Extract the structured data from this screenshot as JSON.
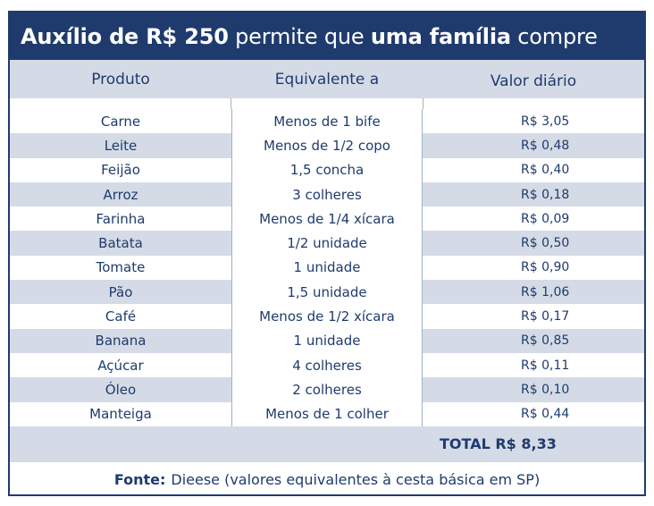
{
  "title": {
    "part1": "Auxílio de R$ 250",
    "part2": " permite que ",
    "part3": "uma família",
    "part4": " compre"
  },
  "headers": {
    "produto": "Produto",
    "equivalente": "Equivalente a",
    "valor": "Valor diário"
  },
  "rows": [
    {
      "produto": "Carne",
      "equivalente": "Menos de 1 bife",
      "valor": "R$ 3,05"
    },
    {
      "produto": "Leite",
      "equivalente": "Menos de 1/2 copo",
      "valor": "R$ 0,48"
    },
    {
      "produto": "Feijão",
      "equivalente": "1,5 concha",
      "valor": "R$ 0,40"
    },
    {
      "produto": "Arroz",
      "equivalente": "3 colheres",
      "valor": "R$ 0,18"
    },
    {
      "produto": "Farinha",
      "equivalente": "Menos de 1/4 xícara",
      "valor": "R$ 0,09"
    },
    {
      "produto": "Batata",
      "equivalente": "1/2 unidade",
      "valor": "R$ 0,50"
    },
    {
      "produto": "Tomate",
      "equivalente": "1 unidade",
      "valor": "R$ 0,90"
    },
    {
      "produto": "Pão",
      "equivalente": "1,5 unidade",
      "valor": "R$ 1,06"
    },
    {
      "produto": "Café",
      "equivalente": "Menos de 1/2 xícara",
      "valor": "R$ 0,17"
    },
    {
      "produto": "Banana",
      "equivalente": "1 unidade",
      "valor": "R$ 0,85"
    },
    {
      "produto": "Açúcar",
      "equivalente": "4 colheres",
      "valor": "R$ 0,11"
    },
    {
      "produto": "Óleo",
      "equivalente": "2 colheres",
      "valor": "R$ 0,10"
    },
    {
      "produto": "Manteiga",
      "equivalente": "Menos de 1 colher",
      "valor": "R$ 0,44"
    }
  ],
  "total": "TOTAL R$ 8,33",
  "source": {
    "label": "Fonte:",
    "text": "Dieese (valores equivalentes à cesta básica em SP)"
  },
  "colors": {
    "navy": "#1f3b6e",
    "stripe": "#d4dbe6"
  }
}
